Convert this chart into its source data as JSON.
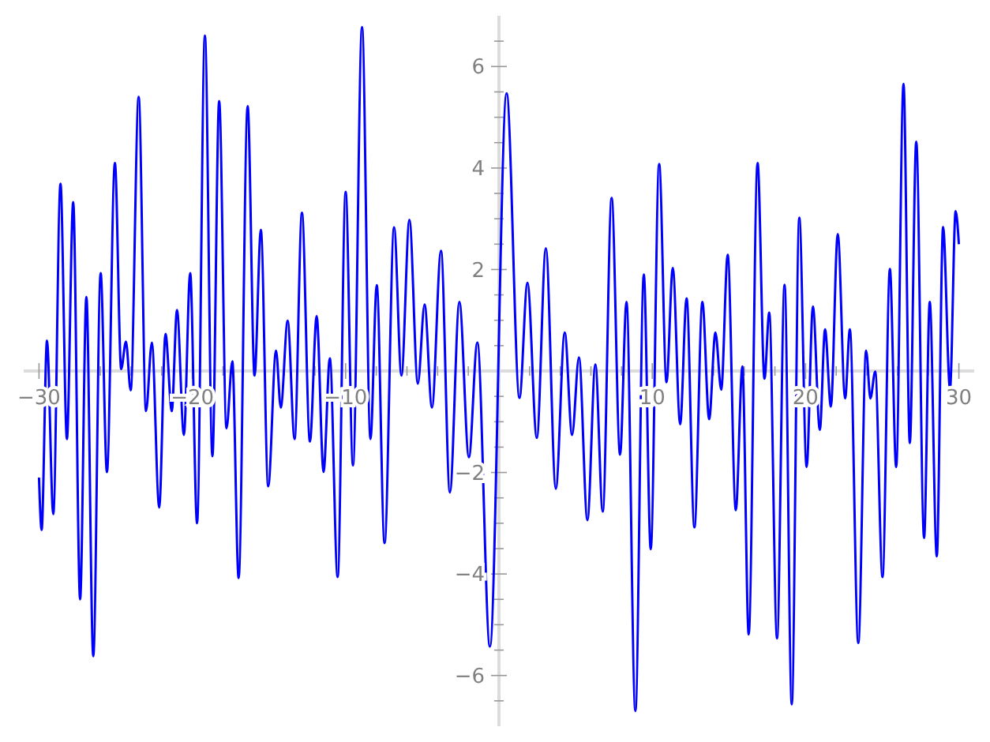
{
  "chart_data": {
    "type": "line",
    "xlim": [
      -31,
      31
    ],
    "ylim": [
      -7,
      7
    ],
    "xticks": [
      {
        "value": -30,
        "label": "−30"
      },
      {
        "value": -28,
        "label": null
      },
      {
        "value": -26,
        "label": null
      },
      {
        "value": -24,
        "label": null
      },
      {
        "value": -22,
        "label": null
      },
      {
        "value": -20,
        "label": "−20"
      },
      {
        "value": -18,
        "label": null
      },
      {
        "value": -16,
        "label": null
      },
      {
        "value": -14,
        "label": null
      },
      {
        "value": -12,
        "label": null
      },
      {
        "value": -10,
        "label": "−10"
      },
      {
        "value": -8,
        "label": null
      },
      {
        "value": -6,
        "label": null
      },
      {
        "value": -4,
        "label": null
      },
      {
        "value": -2,
        "label": null
      },
      {
        "value": 2,
        "label": null
      },
      {
        "value": 4,
        "label": null
      },
      {
        "value": 6,
        "label": null
      },
      {
        "value": 8,
        "label": null
      },
      {
        "value": 10,
        "label": "10"
      },
      {
        "value": 12,
        "label": null
      },
      {
        "value": 14,
        "label": null
      },
      {
        "value": 16,
        "label": null
      },
      {
        "value": 18,
        "label": null
      },
      {
        "value": 20,
        "label": "20"
      },
      {
        "value": 22,
        "label": null
      },
      {
        "value": 24,
        "label": null
      },
      {
        "value": 26,
        "label": null
      },
      {
        "value": 28,
        "label": null
      },
      {
        "value": 30,
        "label": "30"
      }
    ],
    "yticks": [
      {
        "value": -6.5,
        "label": null
      },
      {
        "value": -6,
        "label": "−6"
      },
      {
        "value": -5.5,
        "label": null
      },
      {
        "value": -5,
        "label": null
      },
      {
        "value": -4.5,
        "label": null
      },
      {
        "value": -4,
        "label": "−4"
      },
      {
        "value": -3.5,
        "label": null
      },
      {
        "value": -3,
        "label": null
      },
      {
        "value": -2.5,
        "label": null
      },
      {
        "value": -2,
        "label": "−2"
      },
      {
        "value": -1.5,
        "label": null
      },
      {
        "value": -1,
        "label": null
      },
      {
        "value": -0.5,
        "label": null
      },
      {
        "value": 0.5,
        "label": null
      },
      {
        "value": 1,
        "label": null
      },
      {
        "value": 1.5,
        "label": null
      },
      {
        "value": 2,
        "label": "2"
      },
      {
        "value": 2.5,
        "label": null
      },
      {
        "value": 3,
        "label": null
      },
      {
        "value": 3.5,
        "label": null
      },
      {
        "value": 4,
        "label": "4"
      },
      {
        "value": 4.5,
        "label": null
      },
      {
        "value": 5,
        "label": null
      },
      {
        "value": 5.5,
        "label": null
      },
      {
        "value": 6,
        "label": "6"
      },
      {
        "value": 6.5,
        "label": null
      }
    ],
    "series": [
      {
        "color": "#0000ff",
        "x": [
          -30,
          -29.83,
          -29.48,
          -29.07,
          -28.6,
          -28.18,
          -27.77,
          -27.32,
          -26.91,
          -26.46,
          -25.98,
          -25.57,
          -25.05,
          -24.64,
          -24.33,
          -24.02,
          -23.5,
          -23.02,
          -22.64,
          -22.16,
          -21.75,
          -21.34,
          -21.0,
          -20.55,
          -20.14,
          -19.69,
          -19.18,
          -18.69,
          -18.25,
          -17.77,
          -17.39,
          -16.98,
          -16.39,
          -15.94,
          -15.53,
          -15.05,
          -14.54,
          -14.23,
          -13.78,
          -13.33,
          -12.85,
          -12.33,
          -11.89,
          -11.44,
          -11.03,
          -10.52,
          -10.0,
          -9.52,
          -8.93,
          -8.38,
          -7.97,
          -7.46,
          -6.84,
          -6.36,
          -5.84,
          -5.29,
          -4.85,
          -4.37,
          -3.78,
          -3.2,
          -2.58,
          -1.96,
          -1.41,
          -0.59,
          0.5,
          1.34,
          1.86,
          2.47,
          3.06,
          3.71,
          4.29,
          4.77,
          5.22,
          5.77,
          6.29,
          6.77,
          7.35,
          7.9,
          8.32,
          8.9,
          9.45,
          9.9,
          10.45,
          10.93,
          11.34,
          11.82,
          12.24,
          12.75,
          13.27,
          13.71,
          14.12,
          14.5,
          14.92,
          15.45,
          15.88,
          16.29,
          16.87,
          17.32,
          17.63,
          18.14,
          18.63,
          19.1,
          19.59,
          20.07,
          20.48,
          20.93,
          21.27,
          21.65,
          22.1,
          22.58,
          22.89,
          23.44,
          23.95,
          24.23,
          24.54,
          25.02,
          25.5,
          25.91,
          26.39,
          26.8,
          27.22,
          27.73,
          28.1,
          28.56,
          28.97,
          29.42,
          29.79,
          30
        ],
        "values": [
          -2.1,
          -3.13,
          0.6,
          -2.82,
          3.69,
          -1.34,
          3.33,
          -4.5,
          1.46,
          -5.62,
          1.93,
          -1.99,
          4.1,
          0.04,
          0.58,
          -0.38,
          5.4,
          -0.79,
          0.56,
          -2.69,
          0.73,
          -0.79,
          1.2,
          -1.26,
          1.93,
          -3.0,
          6.61,
          -1.68,
          5.32,
          -1.13,
          0.19,
          -4.08,
          5.22,
          -0.09,
          2.78,
          -2.27,
          0.4,
          -0.72,
          0.99,
          -1.34,
          3.12,
          -1.39,
          1.08,
          -1.99,
          0.25,
          -4.06,
          3.53,
          -1.86,
          6.78,
          -1.34,
          1.69,
          -3.39,
          2.83,
          -0.09,
          2.98,
          -0.25,
          1.31,
          -0.72,
          2.37,
          -2.39,
          1.36,
          -1.7,
          0.56,
          -5.43,
          5.47,
          -0.53,
          1.74,
          -1.32,
          2.42,
          -2.32,
          0.76,
          -1.26,
          0.27,
          -2.94,
          0.13,
          -2.77,
          3.41,
          -1.65,
          1.36,
          -6.7,
          1.9,
          -3.51,
          4.08,
          -0.22,
          2.03,
          -1.05,
          1.43,
          -3.08,
          1.36,
          -0.95,
          0.76,
          -0.37,
          2.29,
          -2.74,
          0.09,
          -5.19,
          4.1,
          -0.15,
          1.15,
          -5.27,
          1.7,
          -6.57,
          3.02,
          -1.89,
          1.27,
          -1.16,
          0.82,
          -0.7,
          2.7,
          -0.54,
          0.82,
          -5.36,
          0.4,
          -0.54,
          -0.01,
          -4.06,
          2.01,
          -1.89,
          5.66,
          -1.42,
          4.52,
          -3.29,
          1.36,
          -3.65,
          2.84,
          -0.35,
          3.15,
          2.5
        ]
      }
    ]
  }
}
